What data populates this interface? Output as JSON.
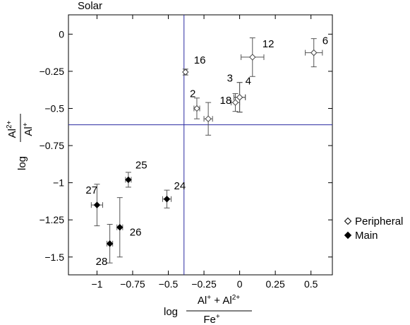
{
  "chart_data": {
    "type": "scatter",
    "title": "Solar",
    "xlabel": {
      "prefix": "log",
      "numerator": [
        "Al",
        "+",
        " + Al",
        "2+"
      ],
      "denominator": [
        "Fe",
        "+"
      ]
    },
    "ylabel": {
      "prefix": "log",
      "numerator": [
        "Al",
        "2+"
      ],
      "denominator": [
        "Al",
        "+"
      ]
    },
    "xlim": [
      -1.2,
      0.65
    ],
    "ylim": [
      -1.62,
      0.13
    ],
    "xticks": [
      {
        "value": -1.0,
        "label": "−1"
      },
      {
        "value": -0.75,
        "label": "−0.75"
      },
      {
        "value": -0.5,
        "label": "−0.5"
      },
      {
        "value": -0.25,
        "label": "−0.25"
      },
      {
        "value": 0.0,
        "label": "0"
      },
      {
        "value": 0.25,
        "label": "0.25"
      },
      {
        "value": 0.5,
        "label": "0.5"
      }
    ],
    "yticks": [
      {
        "value": 0.0,
        "label": "0"
      },
      {
        "value": -0.25,
        "label": "−0.25"
      },
      {
        "value": -0.5,
        "label": "−0.5"
      },
      {
        "value": -0.75,
        "label": "−0.75"
      },
      {
        "value": -1.0,
        "label": "−1"
      },
      {
        "value": -1.25,
        "label": "−1.25"
      },
      {
        "value": -1.5,
        "label": "−1.5"
      }
    ],
    "reference_lines": {
      "x": -0.39,
      "y": -0.61,
      "color": "#2a2aa0"
    },
    "series": [
      {
        "name": "Peripheral",
        "marker": "open-diamond",
        "points": [
          {
            "label": "16",
            "x": -0.38,
            "y": -0.255,
            "xerr": 0.01,
            "yerr": 0.02
          },
          {
            "label": "12",
            "x": 0.09,
            "y": -0.155,
            "xerr": 0.08,
            "yerr": 0.13
          },
          {
            "label": "6",
            "x": 0.52,
            "y": -0.125,
            "xerr": 0.06,
            "yerr": 0.095
          },
          {
            "label": "2",
            "x": -0.3,
            "y": -0.5,
            "xerr": 0.02,
            "yerr": 0.07
          },
          {
            "label": "3",
            "x": 0.0,
            "y": -0.425,
            "xerr": 0.04,
            "yerr": 0.1
          },
          {
            "label": "4",
            "x": 0.0,
            "y": -0.425,
            "xerr": 0.04,
            "yerr": 0.1
          },
          {
            "label": "18",
            "x": -0.03,
            "y": -0.46,
            "xerr": 0.03,
            "yerr": 0.06
          },
          {
            "label": "",
            "x": -0.22,
            "y": -0.57,
            "xerr": 0.03,
            "yerr": 0.11
          }
        ]
      },
      {
        "name": "Main",
        "marker": "filled-diamond",
        "points": [
          {
            "label": "25",
            "x": -0.78,
            "y": -0.98,
            "xerr": 0.02,
            "yerr": 0.05
          },
          {
            "label": "24",
            "x": -0.51,
            "y": -1.11,
            "xerr": 0.03,
            "yerr": 0.06
          },
          {
            "label": "27",
            "x": -1.0,
            "y": -1.15,
            "xerr": 0.04,
            "yerr": 0.14
          },
          {
            "label": "26",
            "x": -0.84,
            "y": -1.3,
            "xerr": 0.02,
            "yerr": 0.2
          },
          {
            "label": "28",
            "x": -0.91,
            "y": -1.41,
            "xerr": 0.02,
            "yerr": 0.13
          }
        ]
      }
    ],
    "legend": {
      "position": "right",
      "entries": [
        {
          "label": "Peripheral",
          "marker": "open-diamond"
        },
        {
          "label": "Main",
          "marker": "filled-diamond"
        }
      ]
    }
  }
}
